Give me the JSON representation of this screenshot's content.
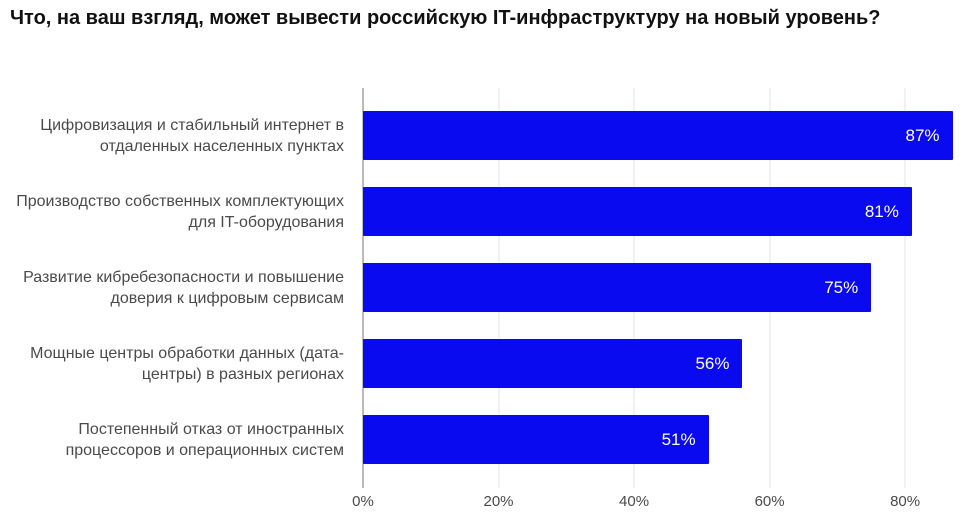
{
  "chart_data": {
    "type": "bar",
    "orientation": "horizontal",
    "title": "Что, на ваш взгляд, может вывести российскую IT-инфраструктуру на новый уровень?",
    "categories": [
      "Цифровизация и стабильный интернет в отдаленных населенных пунктах",
      "Производство собственных комплектующих для IT-оборудования",
      "Развитие кибребезопасности и повышение доверия к цифровым сервисам",
      "Мощные центры обработки данных (дата-центры) в разных регионах",
      "Постепенный отказ от иностранных процессоров и операционных систем"
    ],
    "values": [
      87,
      81,
      75,
      56,
      51
    ],
    "value_labels": [
      "87%",
      "81%",
      "75%",
      "56%",
      "51%"
    ],
    "xticks": [
      0,
      20,
      40,
      60,
      80
    ],
    "xtick_labels": [
      "0%",
      "20%",
      "40%",
      "60%",
      "80%"
    ],
    "xlim": [
      0,
      88.1
    ],
    "grid": true,
    "legend": "none",
    "colors": {
      "bar": "#0a0af0",
      "value_label": "#ffffff",
      "axis_line": "#767676",
      "gridline": "#e3e3e3",
      "category_label": "#4a4a4a",
      "tick_label": "#4a4a4a",
      "title": "#111111",
      "background": "#ffffff"
    }
  }
}
